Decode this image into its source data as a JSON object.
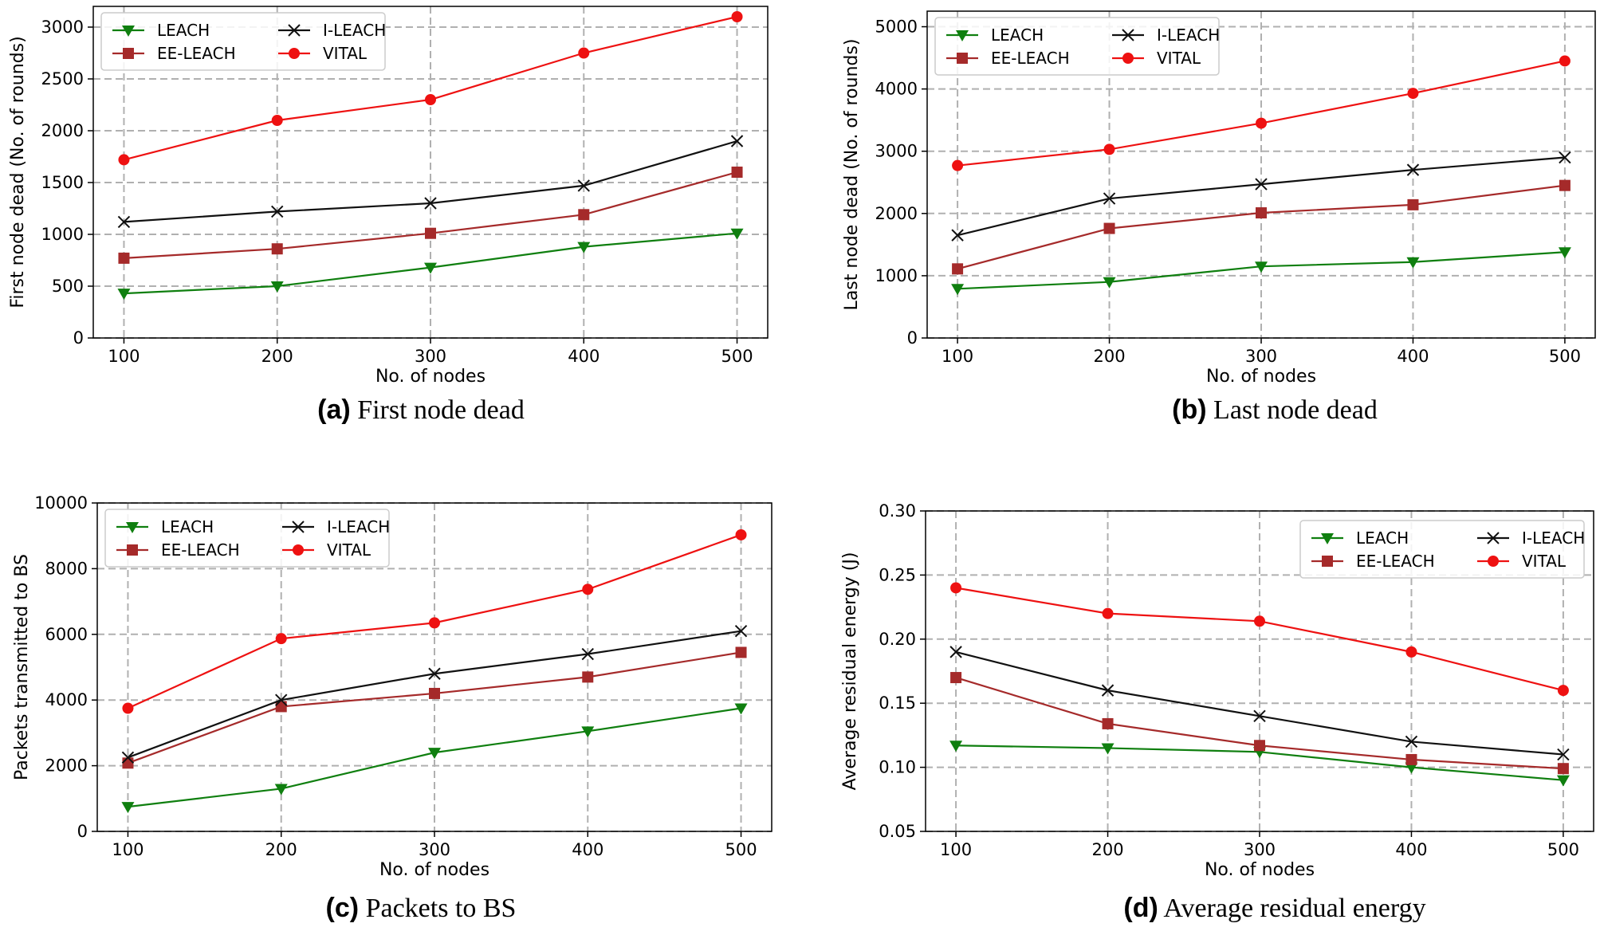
{
  "colors": {
    "LEACH": "#0f7f0f",
    "EE-LEACH": "#a52a2a",
    "I-LEACH": "#111111",
    "VITAL": "#ee1111",
    "grid": "#b0b0b0"
  },
  "chart_data": [
    {
      "type": "line",
      "caption_label": "(a)",
      "caption_text": " First node dead",
      "xlabel": "No. of nodes",
      "ylabel": "First node dead (No. of rounds)",
      "x": [
        100,
        200,
        300,
        400,
        500
      ],
      "xlim": [
        80,
        520
      ],
      "ylim": [
        0,
        3200
      ],
      "yticks": [
        0,
        500,
        1000,
        1500,
        2000,
        2500,
        3000
      ],
      "ytick_labels": [
        "0",
        "500",
        "1000",
        "1500",
        "2000",
        "2500",
        "3000"
      ],
      "grid": true,
      "legend": "top-left",
      "series": [
        {
          "name": "LEACH",
          "marker": "triangle-down",
          "values": [
            430,
            500,
            680,
            880,
            1010
          ]
        },
        {
          "name": "EE-LEACH",
          "marker": "square",
          "values": [
            770,
            860,
            1010,
            1190,
            1600
          ]
        },
        {
          "name": "I-LEACH",
          "marker": "x",
          "values": [
            1120,
            1220,
            1300,
            1470,
            1900
          ]
        },
        {
          "name": "VITAL",
          "marker": "circle",
          "values": [
            1720,
            2100,
            2300,
            2750,
            3100
          ]
        }
      ]
    },
    {
      "type": "line",
      "caption_label": "(b)",
      "caption_text": " Last node dead",
      "xlabel": "No. of nodes",
      "ylabel": "Last node dead (No. of rounds)",
      "x": [
        100,
        200,
        300,
        400,
        500
      ],
      "xlim": [
        80,
        520
      ],
      "ylim": [
        0,
        5250
      ],
      "yticks": [
        0,
        1000,
        2000,
        3000,
        4000,
        5000
      ],
      "ytick_labels": [
        "0",
        "1000",
        "2000",
        "3000",
        "4000",
        "5000"
      ],
      "grid": true,
      "legend": "top-left",
      "series": [
        {
          "name": "LEACH",
          "marker": "triangle-down",
          "values": [
            790,
            900,
            1150,
            1220,
            1380
          ]
        },
        {
          "name": "EE-LEACH",
          "marker": "square",
          "values": [
            1110,
            1760,
            2010,
            2140,
            2450
          ]
        },
        {
          "name": "I-LEACH",
          "marker": "x",
          "values": [
            1650,
            2240,
            2470,
            2700,
            2900
          ]
        },
        {
          "name": "VITAL",
          "marker": "circle",
          "values": [
            2770,
            3030,
            3450,
            3930,
            4450
          ]
        }
      ]
    },
    {
      "type": "line",
      "caption_label": "(c)",
      "caption_text": " Packets to BS",
      "xlabel": "No. of nodes",
      "ylabel": "Packets transmitted to BS",
      "x": [
        100,
        200,
        300,
        400,
        500
      ],
      "xlim": [
        80,
        520
      ],
      "ylim": [
        0,
        10000
      ],
      "yticks": [
        0,
        2000,
        4000,
        6000,
        8000,
        10000
      ],
      "ytick_labels": [
        "0",
        "2000",
        "4000",
        "6000",
        "8000",
        "10000"
      ],
      "grid": true,
      "legend": "top-left",
      "series": [
        {
          "name": "LEACH",
          "marker": "triangle-down",
          "values": [
            750,
            1300,
            2400,
            3050,
            3750
          ]
        },
        {
          "name": "EE-LEACH",
          "marker": "square",
          "values": [
            2080,
            3800,
            4200,
            4700,
            5450
          ]
        },
        {
          "name": "I-LEACH",
          "marker": "x",
          "values": [
            2250,
            4000,
            4800,
            5400,
            6100
          ]
        },
        {
          "name": "VITAL",
          "marker": "circle",
          "values": [
            3750,
            5870,
            6350,
            7370,
            9030
          ]
        }
      ]
    },
    {
      "type": "line",
      "caption_label": "(d)",
      "caption_text": " Average residual energy",
      "xlabel": "No. of nodes",
      "ylabel": "Average residual energy (J)",
      "x": [
        100,
        200,
        300,
        400,
        500
      ],
      "xlim": [
        80,
        520
      ],
      "ylim": [
        0.05,
        0.3
      ],
      "yticks": [
        0.05,
        0.1,
        0.15,
        0.2,
        0.25,
        0.3
      ],
      "ytick_labels": [
        "0.05",
        "0.10",
        "0.15",
        "0.20",
        "0.25",
        "0.30"
      ],
      "grid": true,
      "legend": "top-right",
      "series": [
        {
          "name": "LEACH",
          "marker": "triangle-down",
          "values": [
            0.117,
            0.115,
            0.112,
            0.1,
            0.09
          ]
        },
        {
          "name": "EE-LEACH",
          "marker": "square",
          "values": [
            0.17,
            0.134,
            0.117,
            0.106,
            0.099
          ]
        },
        {
          "name": "I-LEACH",
          "marker": "x",
          "values": [
            0.19,
            0.16,
            0.14,
            0.12,
            0.11
          ]
        },
        {
          "name": "VITAL",
          "marker": "circle",
          "values": [
            0.24,
            0.22,
            0.214,
            0.19,
            0.16
          ]
        }
      ]
    }
  ]
}
